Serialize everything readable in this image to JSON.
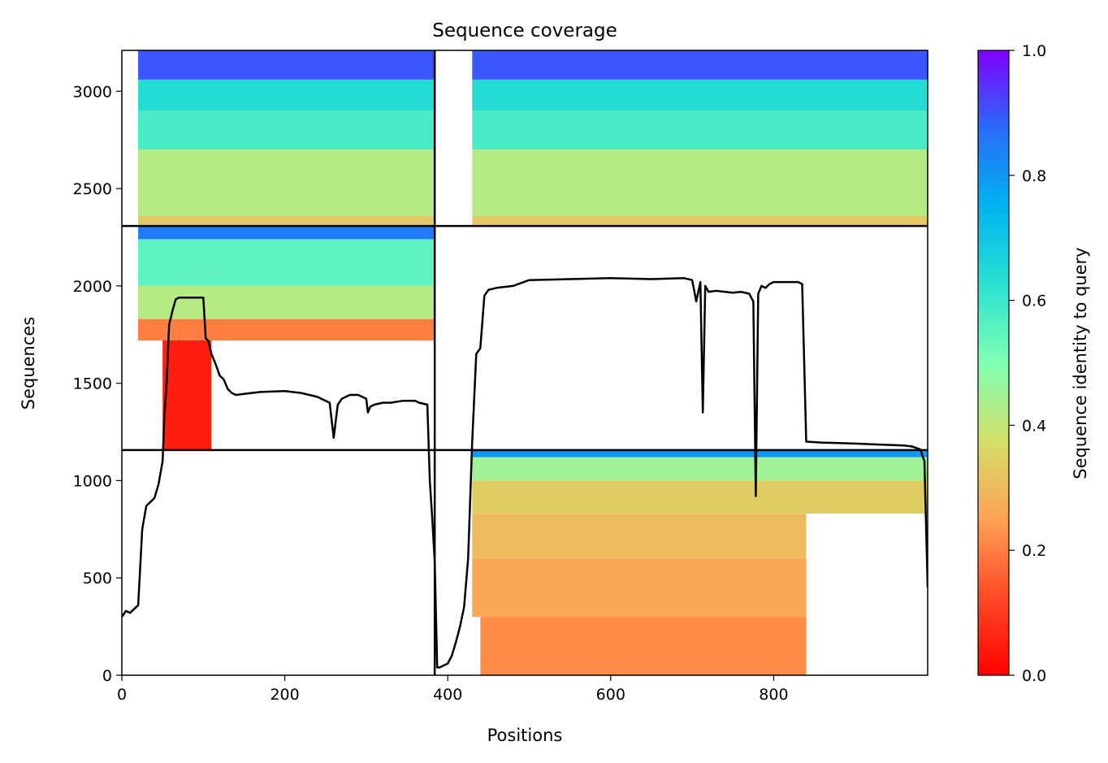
{
  "chart_data": {
    "type": "heatmap",
    "title": "Sequence coverage",
    "xlabel": "Positions",
    "ylabel": "Sequences",
    "xlim": [
      0,
      989
    ],
    "ylim": [
      0,
      3210
    ],
    "xticks": [
      0,
      200,
      400,
      600,
      800
    ],
    "xtick_labels": [
      "0",
      "200",
      "400",
      "600",
      "800"
    ],
    "yticks": [
      0,
      500,
      1000,
      1500,
      2000,
      2500,
      3000
    ],
    "ytick_labels": [
      "0",
      "500",
      "1000",
      "1500",
      "2000",
      "2500",
      "3000"
    ],
    "colorbar": {
      "label": "Sequence identity to query",
      "colormap": "rainbow_r",
      "range": [
        0,
        1
      ],
      "ticks": [
        0,
        0.2,
        0.4,
        0.6,
        0.8,
        1.0
      ],
      "tick_labels": [
        "0.0",
        "0.2",
        "0.4",
        "0.6",
        "0.8",
        "1.0"
      ]
    },
    "chain_boundaries_x": [
      384
    ],
    "chain_boundaries_y": [
      1157,
      2308
    ],
    "bands": [
      {
        "x0": 50,
        "x1": 110,
        "y0": 1160,
        "y1": 1720,
        "identity": 0.05
      },
      {
        "x0": 20,
        "x1": 384,
        "y0": 1720,
        "y1": 1830,
        "identity": 0.2
      },
      {
        "x0": 20,
        "x1": 384,
        "y0": 1830,
        "y1": 2000,
        "identity": 0.42
      },
      {
        "x0": 20,
        "x1": 384,
        "y0": 2000,
        "y1": 2240,
        "identity": 0.55
      },
      {
        "x0": 20,
        "x1": 384,
        "y0": 2240,
        "y1": 2308,
        "identity": 0.85
      },
      {
        "x0": 20,
        "x1": 384,
        "y0": 2308,
        "y1": 2360,
        "identity": 0.33
      },
      {
        "x0": 20,
        "x1": 384,
        "y0": 2360,
        "y1": 2700,
        "identity": 0.42
      },
      {
        "x0": 20,
        "x1": 384,
        "y0": 2700,
        "y1": 2900,
        "identity": 0.58
      },
      {
        "x0": 20,
        "x1": 384,
        "y0": 2900,
        "y1": 3060,
        "identity": 0.64
      },
      {
        "x0": 20,
        "x1": 384,
        "y0": 3060,
        "y1": 3210,
        "identity": 0.9
      },
      {
        "x0": 430,
        "x1": 989,
        "y0": 2308,
        "y1": 2360,
        "identity": 0.33
      },
      {
        "x0": 430,
        "x1": 989,
        "y0": 2360,
        "y1": 2700,
        "identity": 0.42
      },
      {
        "x0": 430,
        "x1": 989,
        "y0": 2700,
        "y1": 2900,
        "identity": 0.58
      },
      {
        "x0": 430,
        "x1": 989,
        "y0": 2900,
        "y1": 3060,
        "identity": 0.64
      },
      {
        "x0": 430,
        "x1": 989,
        "y0": 3060,
        "y1": 3210,
        "identity": 0.9
      },
      {
        "x0": 440,
        "x1": 840,
        "y0": 0,
        "y1": 300,
        "identity": 0.22
      },
      {
        "x0": 430,
        "x1": 840,
        "y0": 300,
        "y1": 600,
        "identity": 0.26
      },
      {
        "x0": 430,
        "x1": 840,
        "y0": 600,
        "y1": 830,
        "identity": 0.3
      },
      {
        "x0": 430,
        "x1": 989,
        "y0": 830,
        "y1": 1000,
        "identity": 0.34
      },
      {
        "x0": 430,
        "x1": 989,
        "y0": 1000,
        "y1": 1120,
        "identity": 0.45
      },
      {
        "x0": 430,
        "x1": 989,
        "y0": 1120,
        "y1": 1157,
        "identity": 0.8
      }
    ],
    "series": [
      {
        "type": "line",
        "x": [
          0,
          5,
          10,
          20,
          25,
          30,
          35,
          40,
          45,
          50,
          52,
          55,
          58,
          62,
          66,
          70,
          80,
          90,
          100,
          103,
          106,
          110,
          115,
          120,
          125,
          130,
          135,
          140,
          150,
          170,
          200,
          220,
          230,
          240,
          250,
          255,
          260,
          265,
          270,
          275,
          280,
          290,
          300,
          302,
          305,
          310,
          320,
          330,
          345,
          360,
          365,
          375,
          378,
          381,
          384,
          387,
          390,
          395,
          400,
          405,
          410,
          415,
          420,
          425,
          430,
          435,
          440,
          445,
          450,
          460,
          480,
          500,
          550,
          600,
          650,
          690,
          700,
          705,
          710,
          713,
          716,
          720,
          730,
          740,
          750,
          760,
          770,
          775,
          778,
          781,
          785,
          790,
          795,
          800,
          830,
          835,
          840,
          860,
          900,
          930,
          960,
          970,
          980,
          985,
          989
        ],
        "y": [
          300,
          330,
          320,
          360,
          750,
          870,
          890,
          910,
          980,
          1100,
          1320,
          1510,
          1800,
          1870,
          1930,
          1940,
          1940,
          1940,
          1940,
          1730,
          1720,
          1650,
          1600,
          1540,
          1520,
          1470,
          1450,
          1440,
          1445,
          1455,
          1460,
          1450,
          1440,
          1430,
          1410,
          1400,
          1220,
          1390,
          1420,
          1430,
          1440,
          1440,
          1420,
          1350,
          1380,
          1390,
          1400,
          1400,
          1410,
          1410,
          1400,
          1390,
          1000,
          800,
          580,
          40,
          40,
          50,
          60,
          100,
          170,
          250,
          350,
          600,
          1200,
          1650,
          1680,
          1950,
          1980,
          1990,
          2000,
          2030,
          2035,
          2040,
          2035,
          2040,
          2030,
          1920,
          2020,
          1350,
          2000,
          1970,
          1975,
          1970,
          1965,
          1970,
          1960,
          1920,
          920,
          1960,
          2000,
          1990,
          2010,
          2020,
          2020,
          2010,
          1200,
          1195,
          1190,
          1185,
          1180,
          1175,
          1160,
          1100,
          450
        ],
        "color": "#000000"
      }
    ]
  }
}
